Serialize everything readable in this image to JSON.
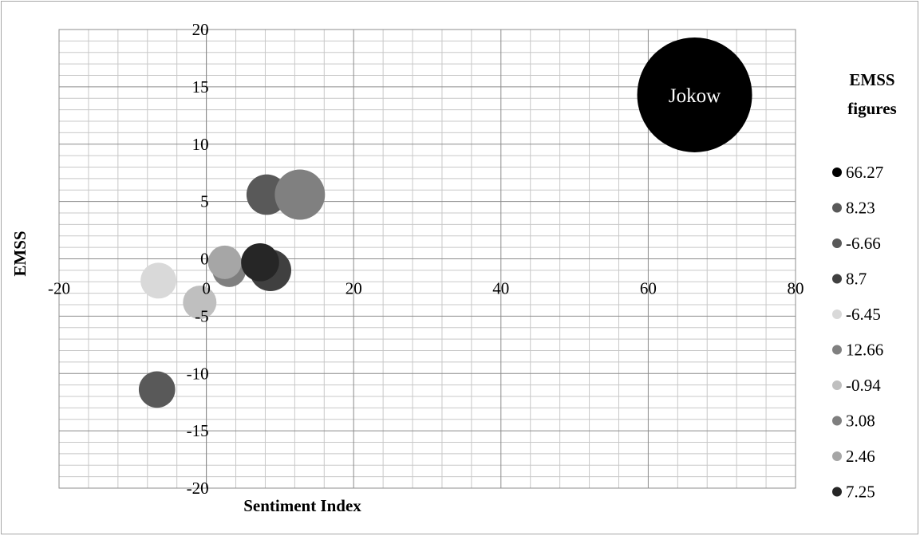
{
  "chart_data": {
    "type": "scatter",
    "subtype": "bubble",
    "xlabel": "Sentiment Index",
    "ylabel": "EMSS",
    "xlim": [
      -20,
      80
    ],
    "ylim": [
      -20,
      20
    ],
    "x_ticks": [
      -20,
      0,
      20,
      40,
      60,
      80
    ],
    "y_ticks": [
      -20,
      -15,
      -10,
      -5,
      0,
      5,
      10,
      15,
      20
    ],
    "grid": true,
    "legend": {
      "title_line1": "EMSS",
      "title_line2": "figures",
      "placement": "right"
    },
    "series": [
      {
        "name": "66.27",
        "x": 66.3,
        "y": 14.3,
        "size": 66.27,
        "color": "#000000",
        "label": "Jokow"
      },
      {
        "name": "8.23",
        "x": 8.2,
        "y": 5.6,
        "size": 8.23,
        "color": "#595959"
      },
      {
        "name": "-6.66",
        "x": -6.7,
        "y": -11.4,
        "size": 6.66,
        "color": "#595959"
      },
      {
        "name": "8.7",
        "x": 8.7,
        "y": -1.0,
        "size": 8.7,
        "color": "#404040"
      },
      {
        "name": "-6.45",
        "x": -6.5,
        "y": -1.9,
        "size": 6.45,
        "color": "#d9d9d9"
      },
      {
        "name": "12.66",
        "x": 12.7,
        "y": 5.6,
        "size": 12.66,
        "color": "#808080"
      },
      {
        "name": "-0.94",
        "x": -0.9,
        "y": -3.8,
        "size": 0.94,
        "color": "#bfbfbf"
      },
      {
        "name": "3.08",
        "x": 3.1,
        "y": -1.0,
        "size": 3.08,
        "color": "#7f7f7f"
      },
      {
        "name": "2.46",
        "x": 2.5,
        "y": -0.3,
        "size": 2.46,
        "color": "#a6a6a6"
      },
      {
        "name": "7.25",
        "x": 7.3,
        "y": -0.3,
        "size": 7.25,
        "color": "#262626"
      }
    ]
  }
}
